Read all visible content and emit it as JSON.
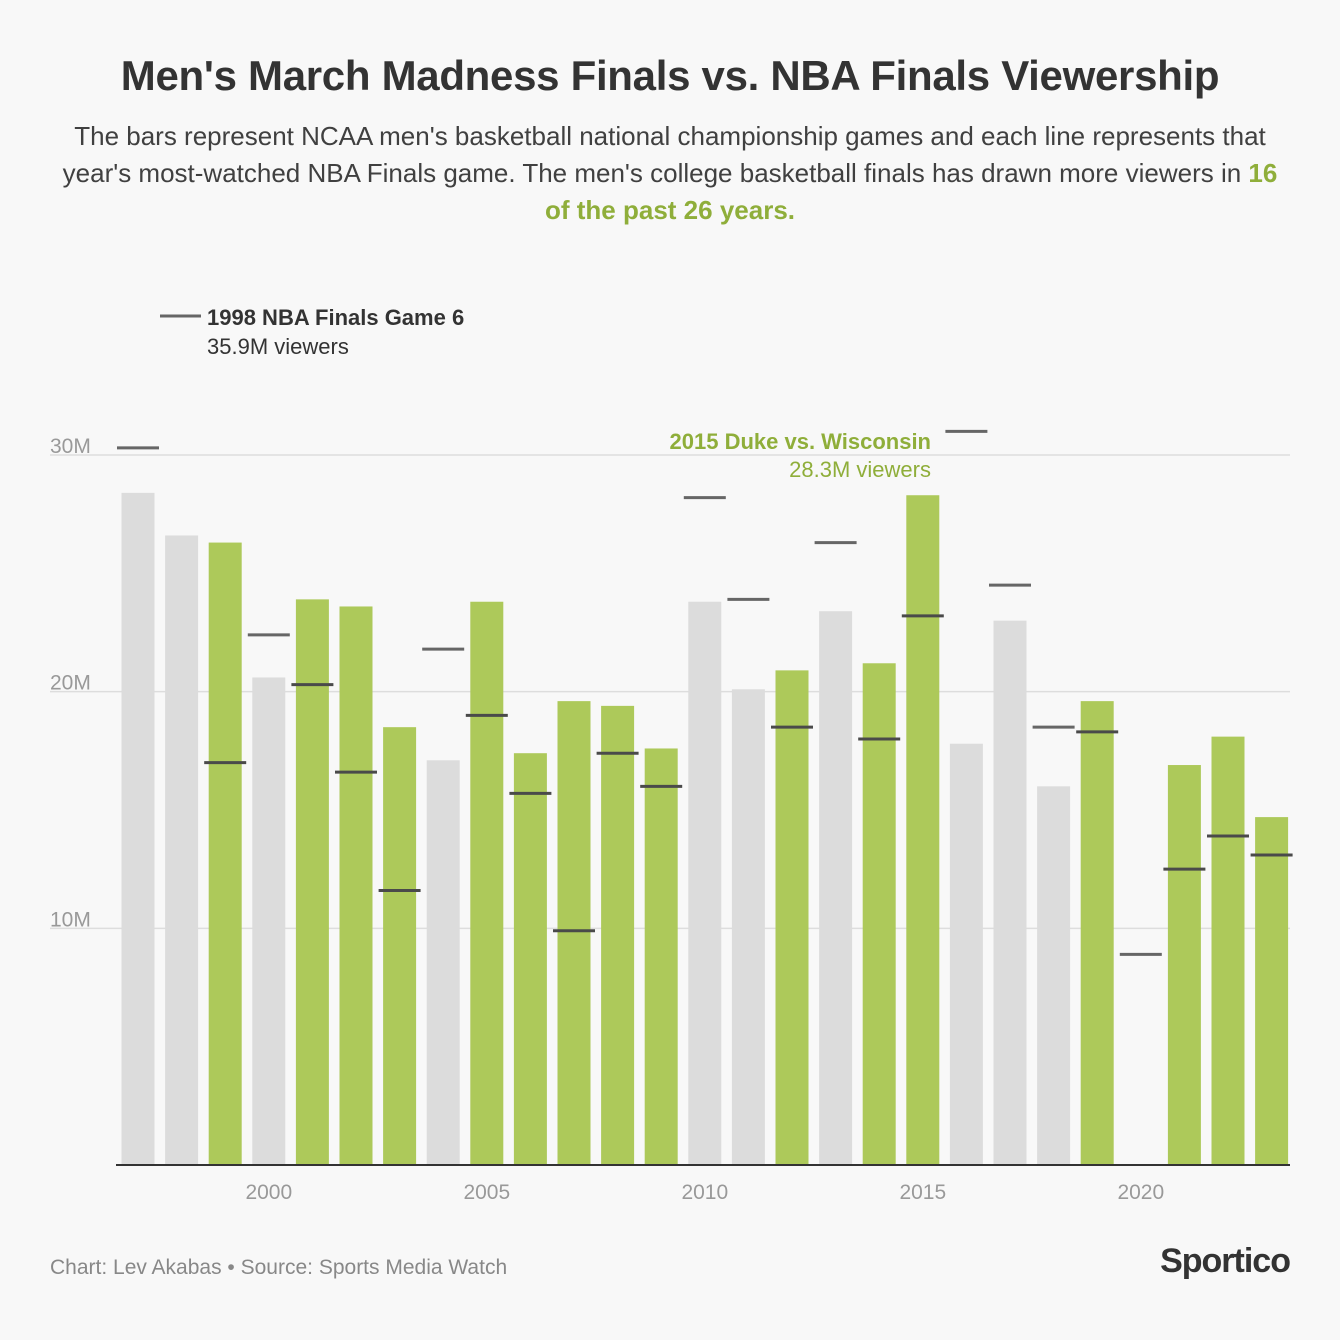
{
  "header": {
    "title": "Men's March Madness Finals vs. NBA Finals Viewership",
    "subtitle_before": "The bars represent NCAA men's basketball national championship games and each line represents that year's most-watched NBA Finals game. The men's college basketball finals has drawn more viewers in ",
    "subtitle_highlight": "16 of the past 26 years."
  },
  "footer": {
    "credit": "Chart: Lev Akabas • Source: Sports Media Watch",
    "logo": "Sportico"
  },
  "chart_data": {
    "type": "bar",
    "years": [
      1997,
      1998,
      1999,
      2000,
      2001,
      2002,
      2003,
      2004,
      2005,
      2006,
      2007,
      2008,
      2009,
      2010,
      2011,
      2012,
      2013,
      2014,
      2015,
      2016,
      2017,
      2018,
      2019,
      2020,
      2021,
      2022,
      2023
    ],
    "ncaa_viewers_m": [
      28.4,
      26.6,
      26.3,
      20.6,
      23.9,
      23.6,
      18.5,
      17.1,
      23.8,
      17.4,
      19.6,
      19.4,
      17.6,
      23.8,
      20.1,
      20.9,
      23.4,
      21.2,
      28.3,
      17.8,
      23.0,
      16.0,
      19.6,
      null,
      16.9,
      18.1,
      14.7
    ],
    "nba_top_game_m": [
      30.3,
      null,
      17.0,
      22.4,
      20.3,
      16.6,
      11.6,
      21.8,
      19.0,
      15.7,
      9.9,
      17.4,
      16.0,
      28.2,
      23.9,
      18.5,
      26.3,
      18.0,
      23.2,
      31.0,
      24.5,
      18.5,
      18.3,
      8.9,
      12.5,
      13.9,
      13.1
    ],
    "ncaa_won": [
      false,
      false,
      true,
      false,
      true,
      true,
      true,
      false,
      true,
      true,
      true,
      true,
      true,
      false,
      false,
      true,
      false,
      true,
      true,
      false,
      false,
      false,
      true,
      false,
      true,
      true,
      true
    ],
    "x_ticks": [
      2000,
      2005,
      2010,
      2015,
      2020
    ],
    "x_tick_labels": [
      "2000",
      "2005",
      "2010",
      "2015",
      "2020"
    ],
    "y_ticks": [
      10,
      20,
      30
    ],
    "y_tick_labels": [
      "10M",
      "20M",
      "30M"
    ],
    "ylim": [
      0,
      30
    ],
    "grid": true,
    "colors": {
      "ncaa_won": "#adc95a",
      "nba_won": "#dcdcdc",
      "nba_line": "#4a4a4a",
      "nba_line_off": "#666666",
      "highlight_text": "#8fae3a"
    },
    "annotations": [
      {
        "title": "1998 NBA Finals Game 6",
        "text": "35.9M viewers"
      },
      {
        "title": "2015 Duke vs. Wisconsin",
        "text": "28.3M viewers"
      }
    ]
  }
}
